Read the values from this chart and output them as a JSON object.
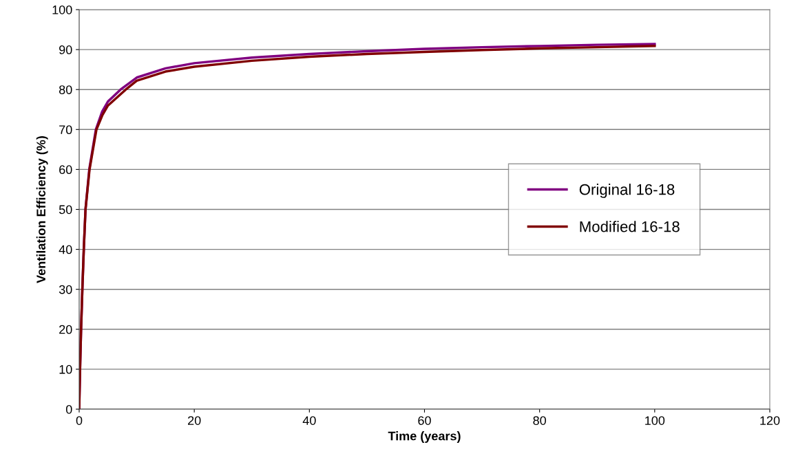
{
  "chart_data": {
    "type": "line",
    "xlabel": "Time (years)",
    "ylabel": "Ventilation Efficiency (%)",
    "xlim": [
      0,
      120
    ],
    "xticks": [
      0,
      20,
      40,
      60,
      80,
      100,
      120
    ],
    "ylim": [
      0,
      100
    ],
    "yticks": [
      0,
      10,
      20,
      30,
      40,
      50,
      60,
      70,
      80,
      90,
      100
    ],
    "grid": "y",
    "legend": "right",
    "marker": "none",
    "line_style": "solid",
    "series": [
      {
        "name": "Original 16-18",
        "color": "#800080",
        "x": [
          0,
          0.15,
          0.33,
          0.55,
          0.8,
          1.1,
          1.75,
          2.9,
          4,
          5,
          7.2,
          10,
          15,
          20,
          30,
          40,
          50,
          60,
          70,
          80,
          90,
          100
        ],
        "values": [
          0,
          10,
          20,
          30,
          40,
          50,
          60,
          70,
          74.5,
          77,
          80,
          83,
          85.3,
          86.6,
          88,
          88.9,
          89.6,
          90.2,
          90.6,
          90.9,
          91.2,
          91.4
        ]
      },
      {
        "name": "Modified 16-18",
        "color": "#800000",
        "x": [
          0,
          0.15,
          0.33,
          0.55,
          0.8,
          1.1,
          1.8,
          3,
          4,
          5,
          8.1,
          10,
          15,
          20,
          30,
          40,
          50,
          60,
          70,
          80,
          90,
          100
        ],
        "values": [
          0,
          10,
          20,
          30,
          40,
          50,
          60,
          70,
          73.5,
          76,
          80,
          82.2,
          84.5,
          85.7,
          87.2,
          88.2,
          88.9,
          89.4,
          89.9,
          90.3,
          90.6,
          90.9
        ]
      }
    ]
  }
}
